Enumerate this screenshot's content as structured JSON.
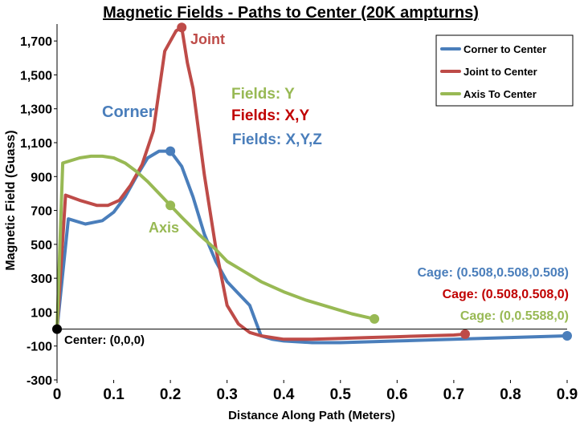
{
  "chart_data": {
    "type": "line",
    "title": "Magnetic Fields - Paths to Center (20K ampturns)",
    "xlabel": "Distance Along Path (Meters)",
    "ylabel": "Magnetic Field (Guass)",
    "xlim": [
      0,
      0.9
    ],
    "ylim": [
      -300,
      1800
    ],
    "xticks": [
      "0",
      "0.1",
      "0.2",
      "0.3",
      "0.4",
      "0.5",
      "0.6",
      "0.7",
      "0.8",
      "0.9"
    ],
    "yticks": [
      "-300",
      "-100",
      "100",
      "300",
      "500",
      "700",
      "900",
      "1,100",
      "1,300",
      "1,500",
      "1,700"
    ],
    "series": [
      {
        "name": "Corner to Center",
        "color": "#4a7ebb",
        "x": [
          0,
          0.02,
          0.05,
          0.08,
          0.1,
          0.12,
          0.14,
          0.16,
          0.18,
          0.2,
          0.22,
          0.24,
          0.26,
          0.28,
          0.3,
          0.32,
          0.34,
          0.36,
          0.38,
          0.4,
          0.45,
          0.5,
          0.6,
          0.7,
          0.8,
          0.9
        ],
        "y": [
          0,
          650,
          620,
          640,
          690,
          780,
          900,
          1010,
          1050,
          1050,
          960,
          780,
          560,
          400,
          280,
          210,
          140,
          -40,
          -60,
          -70,
          -80,
          -80,
          -70,
          -60,
          -50,
          -40
        ]
      },
      {
        "name": "Joint to Center",
        "color": "#be4b48",
        "x": [
          0,
          0.015,
          0.04,
          0.07,
          0.09,
          0.11,
          0.13,
          0.15,
          0.17,
          0.19,
          0.21,
          0.22,
          0.23,
          0.24,
          0.26,
          0.28,
          0.3,
          0.32,
          0.34,
          0.36,
          0.4,
          0.45,
          0.5,
          0.55,
          0.6,
          0.65,
          0.7,
          0.72
        ],
        "y": [
          0,
          790,
          760,
          730,
          730,
          760,
          850,
          970,
          1170,
          1640,
          1760,
          1780,
          1570,
          1420,
          910,
          480,
          140,
          30,
          -20,
          -40,
          -60,
          -60,
          -55,
          -50,
          -45,
          -40,
          -35,
          -30
        ]
      },
      {
        "name": "Axis To Center",
        "color": "#98b954",
        "x": [
          0,
          0.01,
          0.04,
          0.06,
          0.08,
          0.1,
          0.12,
          0.14,
          0.16,
          0.18,
          0.2,
          0.22,
          0.25,
          0.28,
          0.3,
          0.33,
          0.36,
          0.4,
          0.44,
          0.48,
          0.52,
          0.56
        ],
        "y": [
          0,
          980,
          1010,
          1020,
          1020,
          1010,
          980,
          930,
          870,
          800,
          730,
          660,
          560,
          470,
          400,
          340,
          280,
          220,
          170,
          130,
          90,
          60
        ]
      }
    ],
    "markers": [
      {
        "series": 0,
        "x": 0.2,
        "y": 1050
      },
      {
        "series": 1,
        "x": 0.22,
        "y": 1780
      },
      {
        "series": 2,
        "x": 0.2,
        "y": 730
      },
      {
        "series": 0,
        "x": 0.9,
        "y": -40
      },
      {
        "series": 1,
        "x": 0.72,
        "y": -30
      },
      {
        "series": 2,
        "x": 0.56,
        "y": 60
      },
      {
        "series": -1,
        "x": 0,
        "y": 0
      }
    ],
    "legend": {
      "position": "top-right",
      "entries": [
        "Corner to Center",
        "Joint to Center",
        "Axis To Center"
      ]
    },
    "annotations": [
      {
        "id": "joint",
        "text": "Joint",
        "color": "#be4b48"
      },
      {
        "id": "corner",
        "text": "Corner",
        "color": "#4a7ebb"
      },
      {
        "id": "axis",
        "text": "Axis",
        "color": "#98b954"
      },
      {
        "id": "fields-y",
        "text": "Fields: Y",
        "color": "#98b954"
      },
      {
        "id": "fields-xy",
        "text": "Fields: X,Y",
        "color": "#c00000"
      },
      {
        "id": "fields-xyz",
        "text": "Fields: X,Y,Z",
        "color": "#4a7ebb"
      },
      {
        "id": "cage-corner",
        "text": "Cage: (0.508,0.508,0.508)",
        "color": "#4a7ebb"
      },
      {
        "id": "cage-joint",
        "text": "Cage: (0.508,0.508,0)",
        "color": "#c00000"
      },
      {
        "id": "cage-axis",
        "text": "Cage: (0,0.5588,0)",
        "color": "#98b954"
      },
      {
        "id": "center",
        "text": "Center: (0,0,0)",
        "color": "#000000"
      }
    ]
  }
}
